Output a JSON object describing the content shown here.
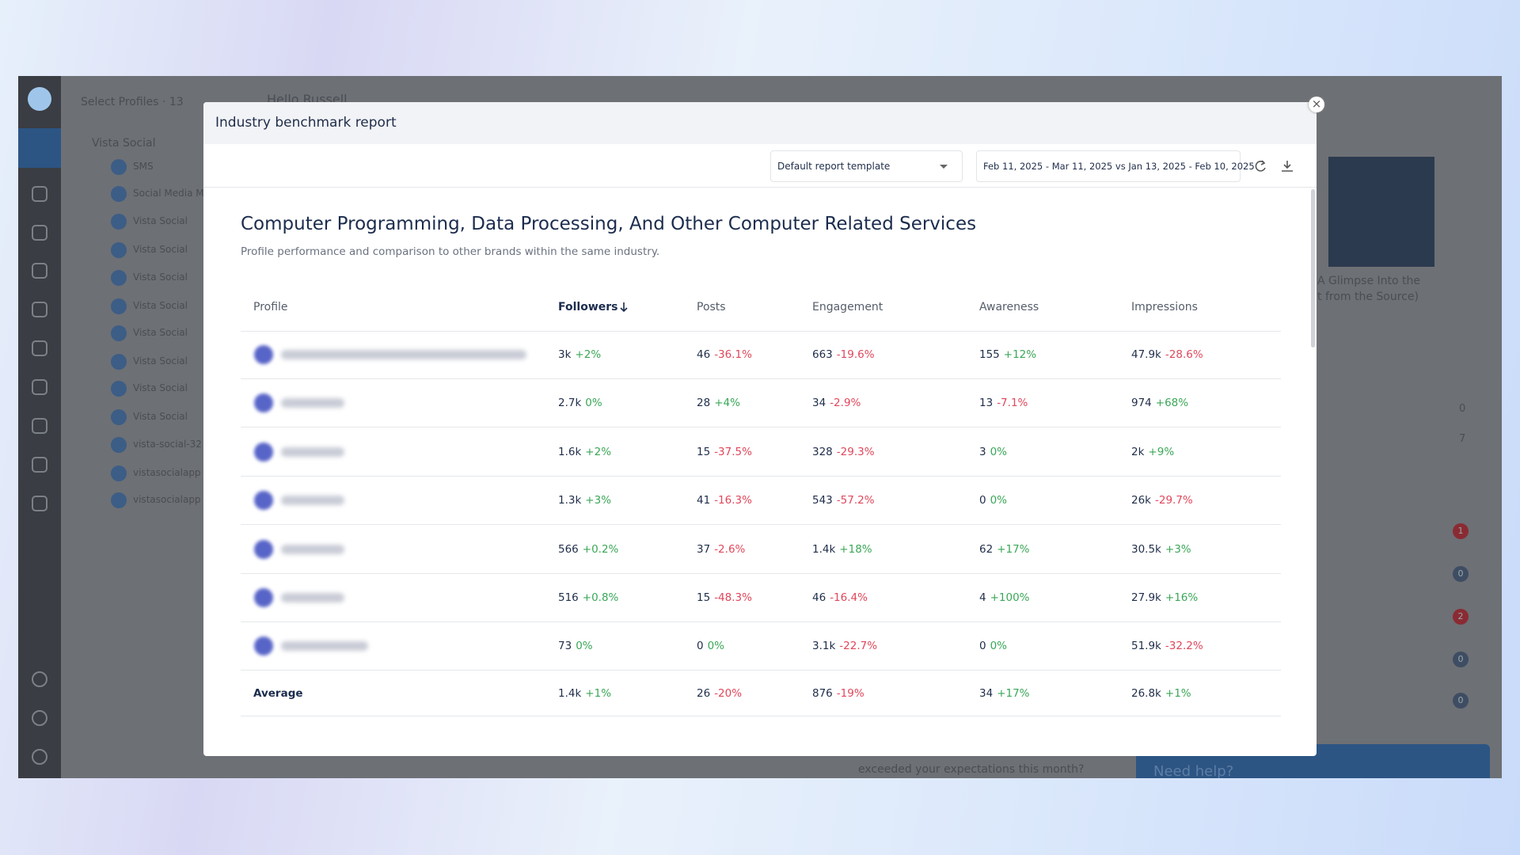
{
  "app": {
    "select_profiles": "Select Profiles · 13",
    "greeting": "Hello Russell",
    "group": "Vista Social",
    "profiles": [
      "SMS",
      "Social Media M",
      "Vista Social",
      "Vista Social",
      "Vista Social",
      "Vista Social",
      "Vista Social",
      "Vista Social",
      "Vista Social",
      "Vista Social",
      "vista-social-32",
      "vistasocialapp",
      "vistasocialapp"
    ],
    "card_caption_1": "A Glimpse Into the",
    "card_caption_2": "t from the Source)",
    "counts": [
      "0",
      "7"
    ],
    "badges": [
      "1",
      "0",
      "2",
      "0",
      "0"
    ],
    "question": "exceeded your expectations this month?",
    "help": "Need help?"
  },
  "modal": {
    "title": "Industry benchmark report",
    "template": "Default report template",
    "date_range": "Feb 11, 2025 - Mar 11, 2025 vs Jan 13, 2025 - Feb 10, 2025",
    "heading": "Computer Programming, Data Processing, And Other Computer Related Services",
    "subtitle": "Profile performance and comparison to other brands within the same industry.",
    "table": {
      "columns": [
        "Profile",
        "Followers",
        "Posts",
        "Engagement",
        "Awareness",
        "Impressions"
      ],
      "rows": [
        [
          {
            "value": "3k",
            "change": "+2%"
          },
          {
            "value": "46",
            "change": "-36.1%"
          },
          {
            "value": "663",
            "change": "-19.6%"
          },
          {
            "value": "155",
            "change": "+12%"
          },
          {
            "value": "47.9k",
            "change": "-28.6%"
          }
        ],
        [
          {
            "value": "2.7k",
            "change": "0%"
          },
          {
            "value": "28",
            "change": "+4%"
          },
          {
            "value": "34",
            "change": "-2.9%"
          },
          {
            "value": "13",
            "change": "-7.1%"
          },
          {
            "value": "974",
            "change": "+68%"
          }
        ],
        [
          {
            "value": "1.6k",
            "change": "+2%"
          },
          {
            "value": "15",
            "change": "-37.5%"
          },
          {
            "value": "328",
            "change": "-29.3%"
          },
          {
            "value": "3",
            "change": "0%"
          },
          {
            "value": "2k",
            "change": "+9%"
          }
        ],
        [
          {
            "value": "1.3k",
            "change": "+3%"
          },
          {
            "value": "41",
            "change": "-16.3%"
          },
          {
            "value": "543",
            "change": "-57.2%"
          },
          {
            "value": "0",
            "change": "0%"
          },
          {
            "value": "26k",
            "change": "-29.7%"
          }
        ],
        [
          {
            "value": "566",
            "change": "+0.2%"
          },
          {
            "value": "37",
            "change": "-2.6%"
          },
          {
            "value": "1.4k",
            "change": "+18%"
          },
          {
            "value": "62",
            "change": "+17%"
          },
          {
            "value": "30.5k",
            "change": "+3%"
          }
        ],
        [
          {
            "value": "516",
            "change": "+0.8%"
          },
          {
            "value": "15",
            "change": "-48.3%"
          },
          {
            "value": "46",
            "change": "-16.4%"
          },
          {
            "value": "4",
            "change": "+100%"
          },
          {
            "value": "27.9k",
            "change": "+16%"
          }
        ],
        [
          {
            "value": "73",
            "change": "0%"
          },
          {
            "value": "0",
            "change": "0%"
          },
          {
            "value": "3.1k",
            "change": "-22.7%"
          },
          {
            "value": "0",
            "change": "0%"
          },
          {
            "value": "51.9k",
            "change": "-32.2%"
          }
        ]
      ],
      "average": {
        "label": "Average",
        "cells": [
          {
            "value": "1.4k",
            "change": "+1%"
          },
          {
            "value": "26",
            "change": "-20%"
          },
          {
            "value": "876",
            "change": "-19%"
          },
          {
            "value": "34",
            "change": "+17%"
          },
          {
            "value": "26.8k",
            "change": "+1%"
          }
        ]
      }
    }
  }
}
